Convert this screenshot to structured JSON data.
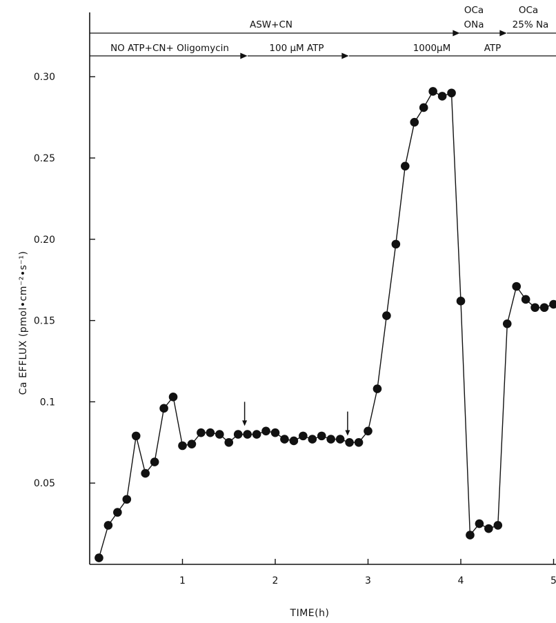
{
  "chart_data": {
    "type": "line",
    "title": "",
    "xlabel": "TIME(h)",
    "ylabel": "Ca EFFLUX (pmol•cm⁻²•s⁻¹)",
    "xlim": [
      0,
      5
    ],
    "ylim": [
      0,
      0.3
    ],
    "x_ticks": [
      {
        "value": 1,
        "label": "1"
      },
      {
        "value": 2,
        "label": "2"
      },
      {
        "value": 3,
        "label": "3"
      },
      {
        "value": 4,
        "label": "4"
      },
      {
        "value": 5,
        "label": "5"
      }
    ],
    "y_ticks": [
      {
        "value": 0.05,
        "label": "0.05"
      },
      {
        "value": 0.1,
        "label": "0.1"
      },
      {
        "value": 0.15,
        "label": "0.15"
      },
      {
        "value": 0.2,
        "label": "0.20"
      },
      {
        "value": 0.25,
        "label": "0.25"
      },
      {
        "value": 0.3,
        "label": "0.30"
      }
    ],
    "grid": false,
    "series": [
      {
        "marker": "filled-circle",
        "color": "#111111",
        "x": [
          0.1,
          0.2,
          0.3,
          0.4,
          0.5,
          0.6,
          0.7,
          0.8,
          0.9,
          1.0,
          1.1,
          1.2,
          1.3,
          1.4,
          1.5,
          1.6,
          1.7,
          1.8,
          1.9,
          2.0,
          2.1,
          2.2,
          2.3,
          2.4,
          2.5,
          2.6,
          2.7,
          2.8,
          2.9,
          3.0,
          3.1,
          3.2,
          3.3,
          3.4,
          3.5,
          3.6,
          3.7,
          3.8,
          3.9,
          4.0,
          4.1,
          4.2,
          4.3,
          4.4,
          4.5,
          4.6,
          4.7,
          4.8,
          4.9,
          5.0
        ],
        "y": [
          0.004,
          0.024,
          0.032,
          0.04,
          0.079,
          0.056,
          0.063,
          0.096,
          0.103,
          0.073,
          0.074,
          0.081,
          0.081,
          0.08,
          0.075,
          0.08,
          0.08,
          0.08,
          0.082,
          0.081,
          0.077,
          0.076,
          0.079,
          0.077,
          0.079,
          0.077,
          0.077,
          0.075,
          0.075,
          0.082,
          0.108,
          0.153,
          0.197,
          0.245,
          0.272,
          0.281,
          0.291,
          0.288,
          0.29,
          0.162,
          0.018,
          0.025,
          0.022,
          0.024,
          0.148,
          0.171,
          0.163,
          0.158,
          0.158,
          0.16
        ]
      }
    ],
    "arrows": [
      {
        "x": 1.67,
        "y": 0.1
      },
      {
        "x": 2.78,
        "y": 0.094
      }
    ],
    "annotations": {
      "top_row": [
        {
          "label": "ASW+CN"
        },
        {
          "label": "OCa"
        },
        {
          "label": "ONa"
        },
        {
          "label": "OCa"
        },
        {
          "label": "25% Na"
        }
      ],
      "second_row": [
        {
          "label": "NO ATP+CN+ Oligomycin"
        },
        {
          "label": "100 μM ATP"
        },
        {
          "label": "1000μM"
        },
        {
          "label": "ATP"
        }
      ]
    }
  }
}
